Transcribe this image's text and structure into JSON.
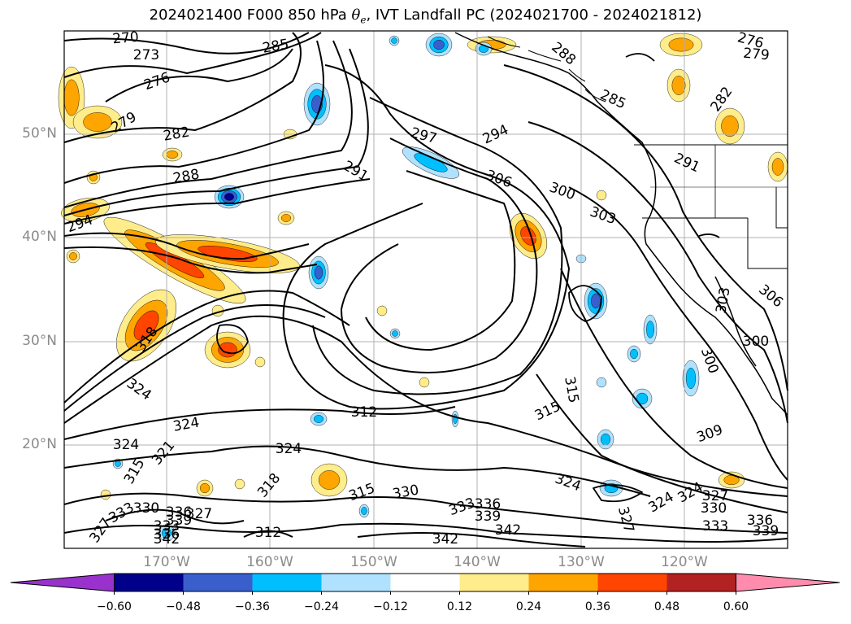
{
  "title": {
    "prefix": "2024021400 F000 850 hPa ",
    "theta": "θ",
    "theta_sub": "e",
    "suffix": ", IVT Landfall PC (2024021700 - 2024021812)"
  },
  "axes": {
    "lat_labels": [
      "50°N",
      "40°N",
      "30°N",
      "20°N"
    ],
    "lon_labels": [
      "170°W",
      "160°W",
      "150°W",
      "140°W",
      "130°W",
      "120°W"
    ]
  },
  "contour_labels": [
    "270",
    "273",
    "276",
    "279",
    "282",
    "285",
    "288",
    "291",
    "294",
    "297",
    "300",
    "303",
    "306",
    "309",
    "312",
    "315",
    "318",
    "321",
    "324",
    "327",
    "330",
    "333",
    "336",
    "339",
    "342"
  ],
  "colorbar": {
    "colors": [
      "#9932cc",
      "#00008b",
      "#3a5fcd",
      "#00bfff",
      "#b0e2ff",
      "#ffffff",
      "#ffec8b",
      "#ffa500",
      "#ff4500",
      "#b22222",
      "#ff8cad"
    ],
    "ticks": [
      "−0.60",
      "−0.48",
      "−0.36",
      "−0.24",
      "−0.12",
      "0.12",
      "0.24",
      "0.36",
      "0.48",
      "0.60"
    ]
  },
  "colors": {
    "contour": "#000000",
    "grid": "#b0b0b0",
    "coast": "#000000"
  }
}
